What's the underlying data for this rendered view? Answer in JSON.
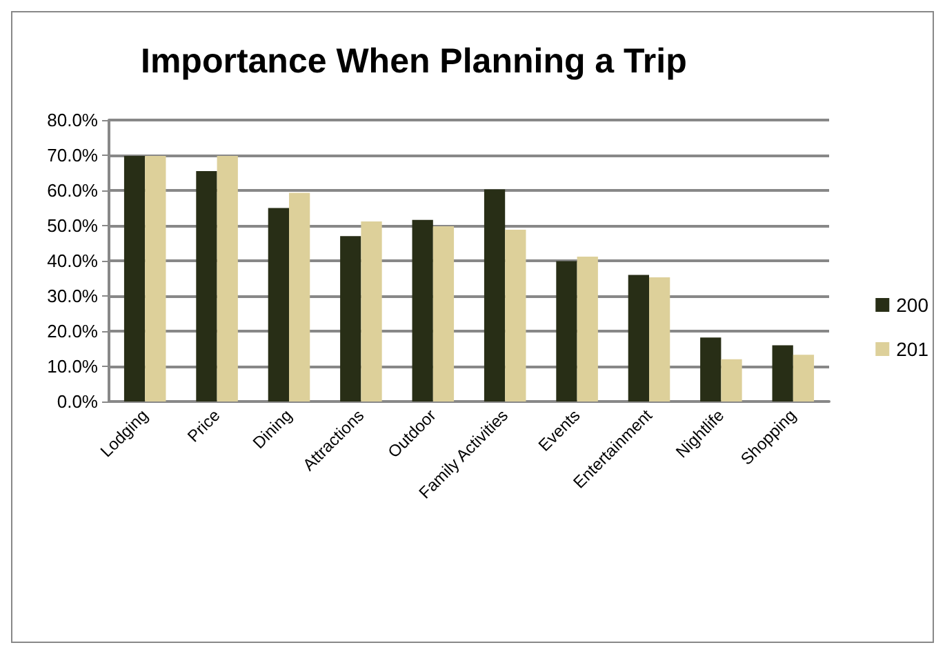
{
  "chart_data": {
    "type": "bar",
    "title": "Importance When Planning a Trip",
    "categories": [
      "Lodging",
      "Price",
      "Dining",
      "Attractions",
      "Outdoor",
      "Family Activities",
      "Events",
      "Entertainment",
      "Nightlife",
      "Shopping"
    ],
    "series": [
      {
        "name": "200",
        "color": "#282e16",
        "values": [
          69.8,
          65.5,
          55.0,
          47.0,
          51.6,
          60.3,
          39.9,
          36.0,
          18.2,
          16.0
        ]
      },
      {
        "name": "201",
        "color": "#ddd09a",
        "values": [
          69.8,
          69.8,
          59.3,
          51.2,
          49.8,
          48.8,
          41.2,
          35.3,
          12.0,
          13.3
        ]
      }
    ],
    "ylim": [
      0,
      80
    ],
    "yticks": [
      {
        "value": 0,
        "label": "0.0%"
      },
      {
        "value": 10,
        "label": "10.0%"
      },
      {
        "value": 20,
        "label": "20.0%"
      },
      {
        "value": 30,
        "label": "30.0%"
      },
      {
        "value": 40,
        "label": "40.0%"
      },
      {
        "value": 50,
        "label": "50.0%"
      },
      {
        "value": 60,
        "label": "60.0%"
      },
      {
        "value": 70,
        "label": "70.0%"
      },
      {
        "value": 80,
        "label": "80.0%"
      }
    ],
    "grid": "y",
    "legend": "right"
  }
}
